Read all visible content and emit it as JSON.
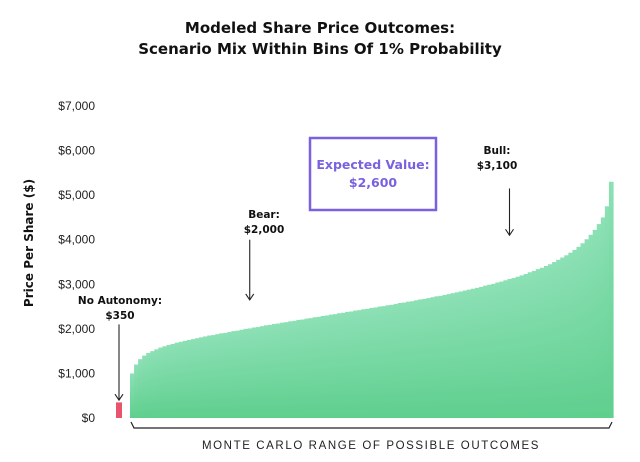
{
  "chart_data": {
    "type": "bar",
    "title": [
      "Modeled Share Price Outcomes:",
      "Scenario Mix Within Bins Of 1% Probability"
    ],
    "xlabel": "MONTE CARLO RANGE OF POSSIBLE OUTCOMES",
    "ylabel": "Price Per Share ($)",
    "ylim": [
      0,
      7000
    ],
    "yticks": [
      0,
      1000,
      2000,
      3000,
      4000,
      5000,
      6000,
      7000
    ],
    "ytick_labels": [
      "$0",
      "$1,000",
      "$2,000",
      "$3,000",
      "$4,000",
      "$5,000",
      "$6,000",
      "$7,000"
    ],
    "grid": false,
    "series": [
      {
        "color": "#e8546b",
        "values": [
          350
        ]
      },
      {
        "color_top": "#8ce0b5",
        "color_bottom": "#5fcf8e",
        "values": [
          1000,
          1200,
          1320,
          1400,
          1460,
          1500,
          1540,
          1580,
          1610,
          1640,
          1660,
          1690,
          1710,
          1730,
          1750,
          1770,
          1790,
          1810,
          1830,
          1850,
          1860,
          1880,
          1900,
          1910,
          1930,
          1950,
          1960,
          1980,
          2000,
          2010,
          2030,
          2040,
          2060,
          2080,
          2090,
          2110,
          2120,
          2140,
          2150,
          2170,
          2180,
          2200,
          2210,
          2230,
          2240,
          2260,
          2270,
          2290,
          2300,
          2320,
          2330,
          2350,
          2360,
          2380,
          2390,
          2410,
          2420,
          2440,
          2450,
          2470,
          2480,
          2500,
          2510,
          2530,
          2540,
          2560,
          2580,
          2590,
          2610,
          2620,
          2640,
          2660,
          2670,
          2690,
          2710,
          2730,
          2740,
          2760,
          2780,
          2800,
          2820,
          2840,
          2860,
          2880,
          2900,
          2920,
          2940,
          2970,
          2990,
          3010,
          3040,
          3060,
          3090,
          3120,
          3140,
          3170,
          3200,
          3230,
          3270,
          3300,
          3340,
          3370,
          3410,
          3450,
          3500,
          3550,
          3600,
          3650,
          3710,
          3770,
          3840,
          3920,
          4010,
          4110,
          4220,
          4350,
          4500,
          4750,
          5300
        ]
      }
    ],
    "annotations": [
      {
        "label": "No Autonomy:",
        "value": "$350",
        "bar_index": 0,
        "arrow_from": 2100,
        "arrow_to": 400
      },
      {
        "label": "Bear:",
        "value": "$2,000",
        "bar_index": 29,
        "arrow_from": 4000,
        "arrow_to": 2650
      },
      {
        "label": "Bull:",
        "value": "$3,100",
        "bar_index": 93,
        "arrow_from": 5150,
        "arrow_to": 4100
      }
    ],
    "callout": {
      "label": "Expected Value:",
      "value": "$2,600",
      "border_color": "#7b61e0"
    }
  }
}
